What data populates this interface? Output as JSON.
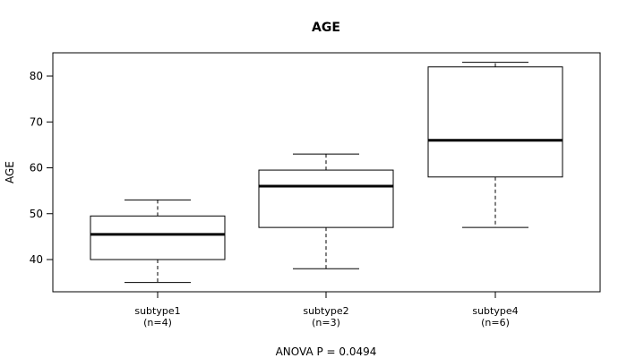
{
  "chart_data": {
    "type": "boxplot",
    "title": "AGE",
    "ylabel": "AGE",
    "xlabel": "ANOVA P = 0.0494",
    "ylim": [
      33,
      85
    ],
    "yticks": [
      40,
      50,
      60,
      70,
      80
    ],
    "categories": [
      {
        "label": "subtype1",
        "n_label": "(n=4)",
        "whisker_low": 35,
        "q1": 40,
        "median": 45.5,
        "q3": 49.5,
        "whisker_high": 53
      },
      {
        "label": "subtype2",
        "n_label": "(n=3)",
        "whisker_low": 38,
        "q1": 47,
        "median": 56,
        "q3": 59.5,
        "whisker_high": 63
      },
      {
        "label": "subtype4",
        "n_label": "(n=6)",
        "whisker_low": 47,
        "q1": 58,
        "median": 66,
        "q3": 82,
        "whisker_high": 83
      }
    ]
  }
}
